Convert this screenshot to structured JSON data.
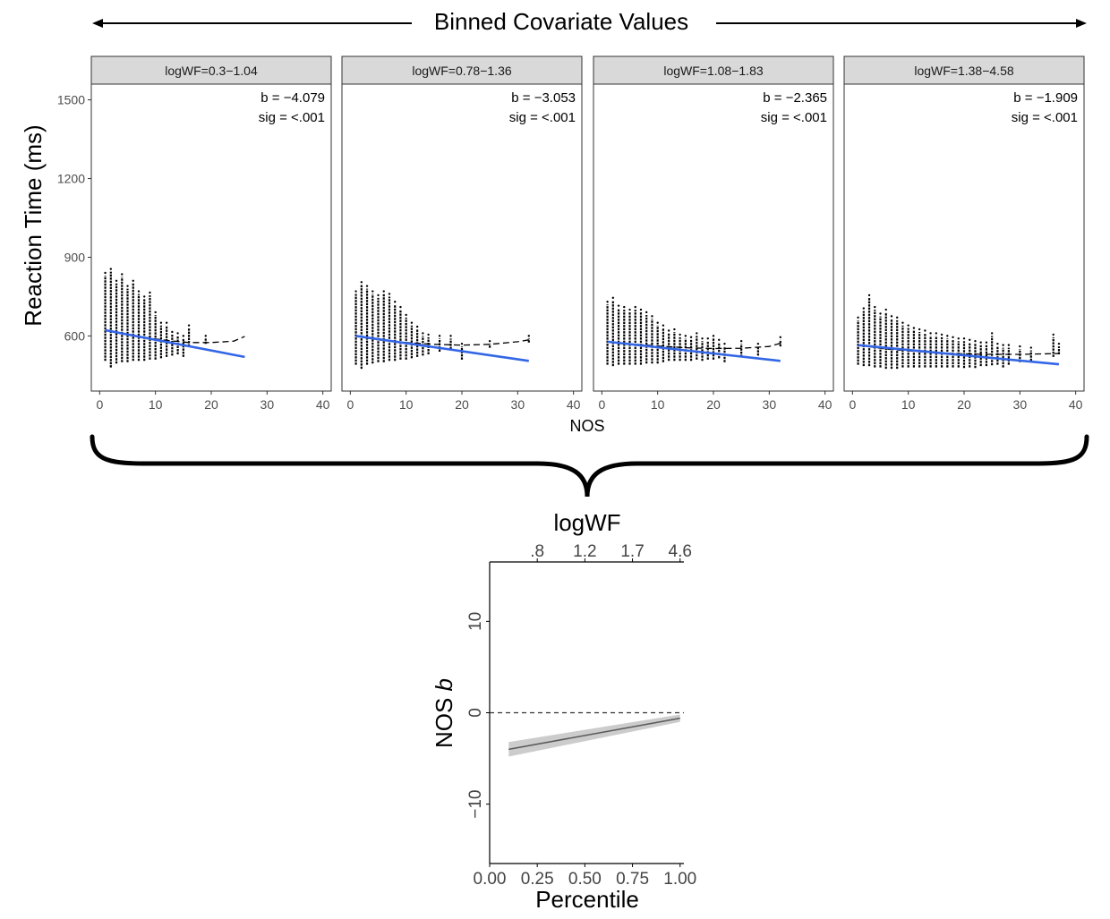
{
  "header": {
    "title": "Binned Covariate Values"
  },
  "colors": {
    "fit_line": "#3366e6",
    "loess_line": "#000000",
    "points": "#000000",
    "strip_bg": "#d9d9d9",
    "panel_border": "#333333",
    "ribbon": "#cccccc",
    "trend_line": "#595959"
  },
  "chart_data": [
    {
      "type": "scatter",
      "facet": "logWF",
      "xlabel": "NOS",
      "ylabel": "Reaction Time (ms)",
      "xlim": [
        -1.5,
        41.5
      ],
      "ylim": [
        390,
        1560
      ],
      "xticks": [
        0,
        10,
        20,
        30,
        40
      ],
      "yticks": [
        600,
        900,
        1200,
        1500
      ],
      "grid": false,
      "panels": [
        {
          "strip": "logWF=0.3−1.04",
          "b_label": "b = −4.079",
          "sig_label": "sig = <.001",
          "xmax": 26,
          "fit": {
            "x": [
              1,
              26
            ],
            "y": [
              622,
              520
            ]
          },
          "loess": {
            "x": [
              1,
              4,
              8,
              12,
              16,
              20,
              24,
              26
            ],
            "y": [
              622,
              608,
              595,
              583,
              575,
              575,
              580,
              598
            ]
          },
          "scatter": [
            {
              "x": 1,
              "min": 505,
              "max": 830
            },
            {
              "x": 2,
              "min": 480,
              "max": 845
            },
            {
              "x": 3,
              "min": 495,
              "max": 800
            },
            {
              "x": 4,
              "min": 500,
              "max": 825
            },
            {
              "x": 5,
              "min": 500,
              "max": 780
            },
            {
              "x": 6,
              "min": 505,
              "max": 800
            },
            {
              "x": 7,
              "min": 505,
              "max": 760
            },
            {
              "x": 8,
              "min": 505,
              "max": 740
            },
            {
              "x": 9,
              "min": 510,
              "max": 755
            },
            {
              "x": 10,
              "min": 510,
              "max": 680
            },
            {
              "x": 11,
              "min": 515,
              "max": 640
            },
            {
              "x": 12,
              "min": 520,
              "max": 640
            },
            {
              "x": 13,
              "min": 525,
              "max": 605
            },
            {
              "x": 14,
              "min": 530,
              "max": 600
            },
            {
              "x": 15,
              "min": 520,
              "max": 590
            },
            {
              "x": 16,
              "min": 560,
              "max": 630
            },
            {
              "x": 19,
              "min": 570,
              "max": 590
            }
          ]
        },
        {
          "strip": "logWF=0.78−1.36",
          "b_label": "b = −3.053",
          "sig_label": "sig = <.001",
          "xmax": 32,
          "fit": {
            "x": [
              1,
              32
            ],
            "y": [
              600,
              505
            ]
          },
          "loess": {
            "x": [
              1,
              5,
              10,
              15,
              20,
              25,
              30,
              32
            ],
            "y": [
              600,
              585,
              575,
              568,
              565,
              568,
              578,
              585
            ]
          },
          "scatter": [
            {
              "x": 1,
              "min": 490,
              "max": 760
            },
            {
              "x": 2,
              "min": 475,
              "max": 795
            },
            {
              "x": 3,
              "min": 490,
              "max": 780
            },
            {
              "x": 4,
              "min": 495,
              "max": 760
            },
            {
              "x": 5,
              "min": 500,
              "max": 745
            },
            {
              "x": 6,
              "min": 500,
              "max": 760
            },
            {
              "x": 7,
              "min": 505,
              "max": 750
            },
            {
              "x": 8,
              "min": 505,
              "max": 720
            },
            {
              "x": 9,
              "min": 510,
              "max": 700
            },
            {
              "x": 10,
              "min": 510,
              "max": 670
            },
            {
              "x": 11,
              "min": 515,
              "max": 640
            },
            {
              "x": 12,
              "min": 520,
              "max": 625
            },
            {
              "x": 13,
              "min": 525,
              "max": 600
            },
            {
              "x": 14,
              "min": 530,
              "max": 595
            },
            {
              "x": 16,
              "min": 540,
              "max": 590
            },
            {
              "x": 18,
              "min": 550,
              "max": 590
            },
            {
              "x": 20,
              "min": 510,
              "max": 560
            },
            {
              "x": 25,
              "min": 555,
              "max": 570
            },
            {
              "x": 32,
              "min": 575,
              "max": 590
            }
          ]
        },
        {
          "strip": "logWF=1.08−1.83",
          "b_label": "b = −2.365",
          "sig_label": "sig = <.001",
          "xmax": 32,
          "fit": {
            "x": [
              1,
              32
            ],
            "y": [
              578,
              505
            ]
          },
          "loess": {
            "x": [
              1,
              5,
              10,
              15,
              20,
              25,
              30,
              32
            ],
            "y": [
              578,
              570,
              562,
              555,
              552,
              553,
              560,
              572
            ]
          },
          "scatter": [
            {
              "x": 1,
              "min": 490,
              "max": 720
            },
            {
              "x": 2,
              "min": 485,
              "max": 735
            },
            {
              "x": 3,
              "min": 490,
              "max": 705
            },
            {
              "x": 4,
              "min": 490,
              "max": 700
            },
            {
              "x": 5,
              "min": 490,
              "max": 690
            },
            {
              "x": 6,
              "min": 490,
              "max": 700
            },
            {
              "x": 7,
              "min": 490,
              "max": 690
            },
            {
              "x": 8,
              "min": 495,
              "max": 680
            },
            {
              "x": 9,
              "min": 495,
              "max": 665
            },
            {
              "x": 10,
              "min": 495,
              "max": 640
            },
            {
              "x": 11,
              "min": 500,
              "max": 630
            },
            {
              "x": 12,
              "min": 505,
              "max": 610
            },
            {
              "x": 13,
              "min": 505,
              "max": 615
            },
            {
              "x": 14,
              "min": 505,
              "max": 595
            },
            {
              "x": 15,
              "min": 505,
              "max": 590
            },
            {
              "x": 16,
              "min": 505,
              "max": 585
            },
            {
              "x": 17,
              "min": 510,
              "max": 600
            },
            {
              "x": 18,
              "min": 505,
              "max": 580
            },
            {
              "x": 19,
              "min": 510,
              "max": 580
            },
            {
              "x": 20,
              "min": 510,
              "max": 590
            },
            {
              "x": 21,
              "min": 515,
              "max": 575
            },
            {
              "x": 22,
              "min": 500,
              "max": 560
            },
            {
              "x": 25,
              "min": 520,
              "max": 570
            },
            {
              "x": 28,
              "min": 525,
              "max": 560
            },
            {
              "x": 32,
              "min": 560,
              "max": 585
            }
          ]
        },
        {
          "strip": "logWF=1.38−4.58",
          "b_label": "b = −1.909",
          "sig_label": "sig = <.001",
          "xmax": 37,
          "fit": {
            "x": [
              1,
              37
            ],
            "y": [
              565,
              492
            ]
          },
          "loess": {
            "x": [
              1,
              6,
              12,
              18,
              24,
              30,
              37
            ],
            "y": [
              565,
              550,
              540,
              533,
              530,
              530,
              533
            ]
          },
          "scatter": [
            {
              "x": 1,
              "min": 490,
              "max": 660
            },
            {
              "x": 2,
              "min": 485,
              "max": 695
            },
            {
              "x": 3,
              "min": 485,
              "max": 745
            },
            {
              "x": 4,
              "min": 480,
              "max": 700
            },
            {
              "x": 5,
              "min": 480,
              "max": 675
            },
            {
              "x": 6,
              "min": 475,
              "max": 690
            },
            {
              "x": 7,
              "min": 475,
              "max": 665
            },
            {
              "x": 8,
              "min": 475,
              "max": 660
            },
            {
              "x": 9,
              "min": 480,
              "max": 640
            },
            {
              "x": 10,
              "min": 480,
              "max": 630
            },
            {
              "x": 11,
              "min": 480,
              "max": 620
            },
            {
              "x": 12,
              "min": 480,
              "max": 615
            },
            {
              "x": 13,
              "min": 480,
              "max": 610
            },
            {
              "x": 14,
              "min": 480,
              "max": 600
            },
            {
              "x": 15,
              "min": 480,
              "max": 600
            },
            {
              "x": 16,
              "min": 480,
              "max": 595
            },
            {
              "x": 17,
              "min": 480,
              "max": 590
            },
            {
              "x": 18,
              "min": 480,
              "max": 585
            },
            {
              "x": 19,
              "min": 480,
              "max": 580
            },
            {
              "x": 20,
              "min": 478,
              "max": 580
            },
            {
              "x": 21,
              "min": 480,
              "max": 575
            },
            {
              "x": 22,
              "min": 478,
              "max": 570
            },
            {
              "x": 23,
              "min": 485,
              "max": 565
            },
            {
              "x": 24,
              "min": 485,
              "max": 565
            },
            {
              "x": 25,
              "min": 488,
              "max": 600
            },
            {
              "x": 26,
              "min": 490,
              "max": 560
            },
            {
              "x": 27,
              "min": 480,
              "max": 555
            },
            {
              "x": 28,
              "min": 490,
              "max": 555
            },
            {
              "x": 30,
              "min": 500,
              "max": 550
            },
            {
              "x": 32,
              "min": 505,
              "max": 545
            },
            {
              "x": 36,
              "min": 520,
              "max": 595
            },
            {
              "x": 37,
              "min": 530,
              "max": 560
            }
          ]
        }
      ]
    },
    {
      "type": "line",
      "xlabel": "Percentile",
      "ylabel": "NOS b",
      "top_axis_label": "logWF",
      "xlim": [
        0,
        1.02
      ],
      "ylim": [
        -16.5,
        16.5
      ],
      "xticks": [
        0.0,
        0.25,
        0.5,
        0.75,
        1.0
      ],
      "xtick_labels": [
        "0.00",
        "0.25",
        "0.50",
        "0.75",
        "1.00"
      ],
      "yticks": [
        -10,
        0,
        10
      ],
      "ytick_labels": [
        "−10",
        "0",
        "10"
      ],
      "top_ticks": [
        0.5,
        1.0,
        1.5,
        2.0
      ],
      "top_tick_labels": [
        ".8",
        "1.2",
        "1.7",
        "4.6"
      ],
      "reference_y": 0,
      "line": {
        "x": [
          0.1,
          1.0
        ],
        "y": [
          -4.0,
          -0.6
        ]
      },
      "ribbon": {
        "x": [
          0.1,
          1.0
        ],
        "lower": [
          -4.8,
          -1.0
        ],
        "upper": [
          -3.2,
          -0.2
        ]
      },
      "grid": false
    }
  ]
}
